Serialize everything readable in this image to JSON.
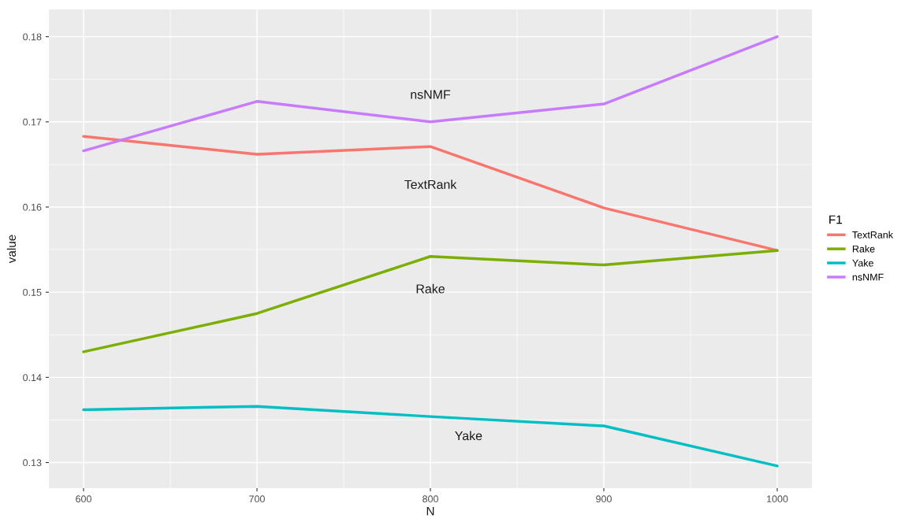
{
  "chart_data": {
    "type": "line",
    "xlabel": "N",
    "ylabel": "value",
    "legend_title": "F1",
    "legend": "right",
    "grid": true,
    "x": [
      600,
      700,
      800,
      900,
      1000
    ],
    "xlim": [
      580,
      1020
    ],
    "xticks": [
      600,
      700,
      800,
      900,
      1000
    ],
    "ylim": [
      0.127,
      0.1832
    ],
    "yticks": [
      0.13,
      0.14,
      0.15,
      0.16,
      0.17,
      0.18
    ],
    "series": [
      {
        "name": "TextRank",
        "color": "#f8766d",
        "values": [
          0.1683,
          0.1662,
          0.1671,
          0.1599,
          0.1549
        ]
      },
      {
        "name": "Rake",
        "color": "#7cae00",
        "values": [
          0.143,
          0.1475,
          0.1542,
          0.1532,
          0.1549
        ]
      },
      {
        "name": "Yake",
        "color": "#00bfc4",
        "values": [
          0.1362,
          0.1366,
          0.1354,
          0.1343,
          0.1296
        ]
      },
      {
        "name": "nsNMF",
        "color": "#c77cff",
        "values": [
          0.1666,
          0.1724,
          0.17,
          0.1721,
          0.18
        ]
      }
    ],
    "annotations": [
      "nsNMF",
      "TextRank",
      "Rake",
      "Yake"
    ]
  }
}
